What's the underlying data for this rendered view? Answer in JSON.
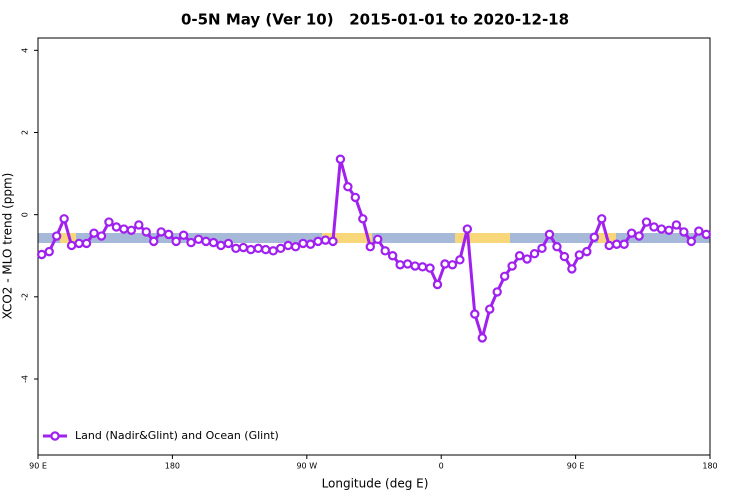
{
  "chart_data": {
    "type": "line",
    "title": "0-5N May (Ver 10)   2015-01-01 to 2020-12-18",
    "xlabel": "Longitude (deg E)",
    "ylabel": "XCO2 - MLO trend (ppm)",
    "x": [
      92.5,
      97.5,
      102.5,
      107.5,
      112.5,
      117.5,
      122.5,
      127.5,
      132.5,
      137.5,
      142.5,
      147.5,
      152.5,
      157.5,
      162.5,
      167.5,
      172.5,
      177.5,
      182.5,
      187.5,
      192.5,
      197.5,
      202.5,
      207.5,
      212.5,
      217.5,
      222.5,
      227.5,
      232.5,
      237.5,
      242.5,
      247.5,
      252.5,
      257.5,
      262.5,
      267.5,
      272.5,
      277.5,
      282.5,
      287.5,
      292.5,
      297.5,
      302.5,
      307.5,
      312.5,
      317.5,
      322.5,
      327.5,
      332.5,
      337.5,
      342.5,
      347.5,
      352.5,
      357.5,
      362.5,
      367.5,
      372.5,
      377.5,
      382.5,
      387.5,
      392.5,
      397.5,
      402.5,
      407.5,
      412.5,
      417.5,
      422.5,
      427.5,
      432.5,
      437.5,
      442.5,
      447.5,
      452.5,
      457.5,
      462.5,
      467.5,
      472.5,
      477.5,
      482.5,
      487.5,
      492.5,
      497.5,
      502.5,
      507.5,
      512.5,
      517.5,
      522.5,
      527.5,
      532.5,
      537.5
    ],
    "series": [
      {
        "name": "Land (Nadir&Glint) and Ocean (Glint)",
        "color": "#a020f0",
        "values": [
          -0.97,
          -0.9,
          -0.52,
          -0.1,
          -0.75,
          -0.7,
          -0.7,
          -0.45,
          -0.52,
          -0.18,
          -0.3,
          -0.35,
          -0.38,
          -0.25,
          -0.42,
          -0.65,
          -0.42,
          -0.48,
          -0.65,
          -0.5,
          -0.68,
          -0.6,
          -0.65,
          -0.68,
          -0.75,
          -0.7,
          -0.82,
          -0.8,
          -0.85,
          -0.82,
          -0.85,
          -0.88,
          -0.82,
          -0.75,
          -0.78,
          -0.7,
          -0.72,
          -0.65,
          -0.62,
          -0.65,
          1.35,
          0.68,
          0.42,
          -0.1,
          -0.78,
          -0.6,
          -0.88,
          -1.0,
          -1.22,
          -1.2,
          -1.25,
          -1.27,
          -1.3,
          -1.7,
          -1.2,
          -1.22,
          -1.1,
          -0.35,
          -2.42,
          -3.0,
          -2.3,
          -1.88,
          -1.5,
          -1.25,
          -1.0,
          -1.08,
          -0.95,
          -0.82,
          -0.48,
          -0.78,
          -1.02,
          -1.32,
          -0.98,
          -0.9,
          -0.55,
          -0.1,
          -0.75,
          -0.72,
          -0.72,
          -0.45,
          -0.52,
          -0.18,
          -0.3,
          -0.35,
          -0.38,
          -0.25,
          -0.42,
          -0.65,
          -0.4,
          -0.48
        ]
      }
    ],
    "xlim": [
      90,
      540
    ],
    "xticks": [
      {
        "value": 90,
        "label": "90 E"
      },
      {
        "value": 180,
        "label": "180"
      },
      {
        "value": 270,
        "label": "90 W"
      },
      {
        "value": 360,
        "label": "0"
      },
      {
        "value": 450,
        "label": "90 E"
      },
      {
        "value": 540,
        "label": "180"
      }
    ],
    "ylim": [
      -5.85,
      4.3
    ],
    "yticks": [
      4,
      2,
      0,
      -2,
      -4
    ],
    "legend": "bottom-left"
  }
}
